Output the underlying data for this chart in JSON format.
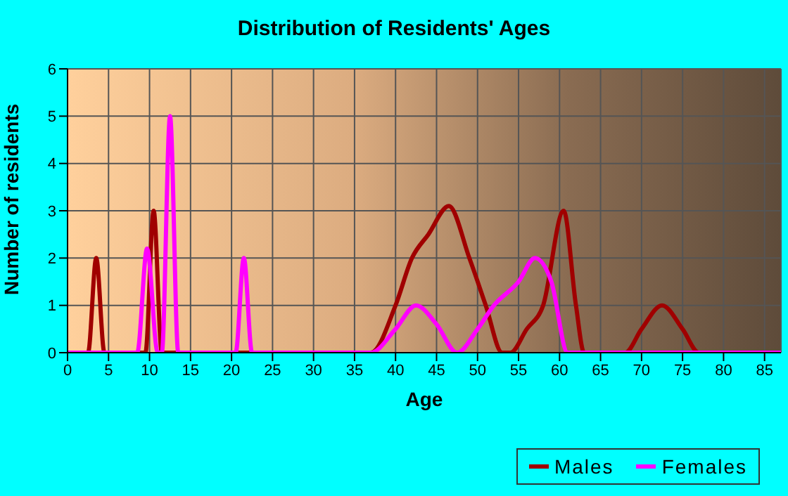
{
  "chart_data": {
    "type": "line",
    "title": "Distribution of Residents' Ages",
    "xlabel": "Age",
    "ylabel": "Number of residents",
    "xlim": [
      0,
      87
    ],
    "xticks": [
      0,
      5,
      10,
      15,
      20,
      25,
      30,
      35,
      40,
      45,
      50,
      55,
      60,
      65,
      70,
      75,
      80,
      85
    ],
    "ylim": [
      0,
      6
    ],
    "yticks": [
      0,
      1,
      2,
      3,
      4,
      5,
      6
    ],
    "grid": true,
    "legend": "bottom right",
    "marker": "none",
    "line_style": "solid",
    "series": [
      {
        "name": "Males",
        "color": "#a00000",
        "x": [
          0,
          2.5,
          3.5,
          4.5,
          9.5,
          10.5,
          11.5,
          37,
          40,
          42,
          44,
          46.5,
          49,
          51,
          53,
          54,
          56,
          58,
          60.5,
          62,
          63,
          68,
          70,
          72.5,
          75,
          77,
          87
        ],
        "values": [
          0,
          0,
          2,
          0,
          0,
          3,
          0,
          0,
          1,
          2,
          2.5,
          3.1,
          2,
          1,
          0,
          0,
          0.5,
          1,
          3,
          1,
          0,
          0,
          0.5,
          1,
          0.5,
          0,
          0
        ]
      },
      {
        "name": "Females",
        "color": "#ff00ff",
        "x": [
          0,
          8.5,
          9.7,
          11,
          11.5,
          12.5,
          13.5,
          20.5,
          21.5,
          22.5,
          37,
          40,
          42.5,
          45,
          47.5,
          50,
          52,
          55,
          57,
          59,
          61,
          87
        ],
        "values": [
          0,
          0,
          2.2,
          0,
          0,
          5,
          0,
          0,
          2,
          0,
          0,
          0.5,
          1,
          0.6,
          0,
          0.5,
          1,
          1.5,
          2,
          1.5,
          0,
          0
        ]
      }
    ]
  }
}
